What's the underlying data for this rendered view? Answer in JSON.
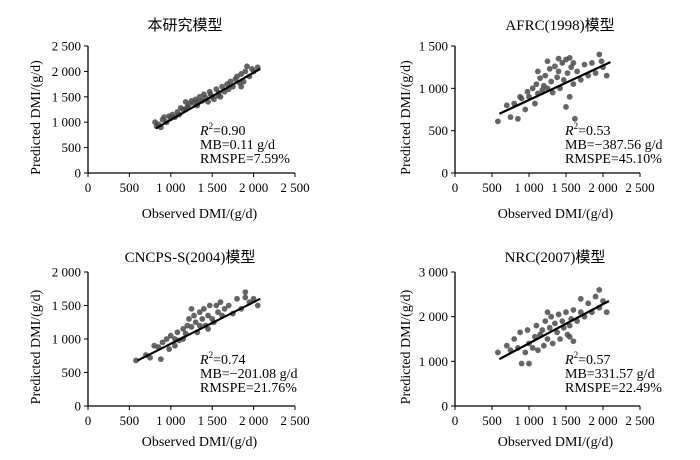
{
  "chart_data": [
    {
      "type": "scatter",
      "title": "本研究模型",
      "xlabel": "Observed DMI/(g/d)",
      "ylabel": "Predicted DMI/(g/d)",
      "xlim": [
        0,
        2500
      ],
      "ylim": [
        0,
        2500
      ],
      "xticks": [
        "0",
        "500",
        "1 000",
        "1 500",
        "2 000",
        "2 500"
      ],
      "yticks": [
        "0",
        "500",
        "1 000",
        "1 500",
        "2 000",
        "2 500"
      ],
      "stats": {
        "r2_label": "R",
        "r2_value": "=0.90",
        "mb": "MB=0.11 g/d",
        "rmspe": "RMSPE=7.59%"
      },
      "fit_line": [
        [
          820,
          880
        ],
        [
          2080,
          2050
        ]
      ],
      "points": [
        [
          810,
          1000
        ],
        [
          830,
          920
        ],
        [
          850,
          960
        ],
        [
          880,
          900
        ],
        [
          900,
          1050
        ],
        [
          920,
          1100
        ],
        [
          950,
          1000
        ],
        [
          980,
          1120
        ],
        [
          1000,
          1080
        ],
        [
          1020,
          1150
        ],
        [
          1050,
          1100
        ],
        [
          1080,
          1200
        ],
        [
          1100,
          1150
        ],
        [
          1120,
          1280
        ],
        [
          1150,
          1250
        ],
        [
          1180,
          1400
        ],
        [
          1200,
          1300
        ],
        [
          1220,
          1350
        ],
        [
          1250,
          1420
        ],
        [
          1280,
          1380
        ],
        [
          1300,
          1450
        ],
        [
          1320,
          1330
        ],
        [
          1350,
          1500
        ],
        [
          1380,
          1420
        ],
        [
          1400,
          1550
        ],
        [
          1420,
          1480
        ],
        [
          1450,
          1400
        ],
        [
          1470,
          1600
        ],
        [
          1500,
          1500
        ],
        [
          1520,
          1450
        ],
        [
          1550,
          1650
        ],
        [
          1570,
          1520
        ],
        [
          1600,
          1500
        ],
        [
          1620,
          1700
        ],
        [
          1650,
          1600
        ],
        [
          1680,
          1750
        ],
        [
          1700,
          1650
        ],
        [
          1720,
          1800
        ],
        [
          1750,
          1700
        ],
        [
          1780,
          1850
        ],
        [
          1800,
          1900
        ],
        [
          1830,
          1780
        ],
        [
          1850,
          1950
        ],
        [
          1880,
          1800
        ],
        [
          1900,
          2000
        ],
        [
          1920,
          2100
        ],
        [
          1950,
          1900
        ],
        [
          1980,
          2050
        ],
        [
          2000,
          2000
        ],
        [
          2050,
          2080
        ],
        [
          1480,
          1550
        ],
        [
          1580,
          1580
        ],
        [
          1180,
          1250
        ],
        [
          1330,
          1400
        ],
        [
          1850,
          1700
        ]
      ]
    },
    {
      "type": "scatter",
      "title": "AFRC(1998)模型",
      "xlabel": "Observed DMI/(g/d)",
      "ylabel": "Predicted DMI/(g/d)",
      "xlim": [
        0,
        2500
      ],
      "ylim": [
        0,
        1500
      ],
      "xticks": [
        "0",
        "500",
        "1 000",
        "1 500",
        "2 000",
        "2 500"
      ],
      "yticks": [
        "0",
        "500",
        "1 000",
        "1 500"
      ],
      "stats": {
        "r2_label": "R",
        "r2_value": "=0.53",
        "mb": "MB=−387.56 g/d",
        "rmspe": "RMSPE=45.10%"
      },
      "fit_line": [
        [
          600,
          700
        ],
        [
          2100,
          1310
        ]
      ],
      "points": [
        [
          580,
          610
        ],
        [
          700,
          800
        ],
        [
          750,
          660
        ],
        [
          800,
          820
        ],
        [
          850,
          640
        ],
        [
          880,
          900
        ],
        [
          900,
          880
        ],
        [
          950,
          750
        ],
        [
          980,
          960
        ],
        [
          1000,
          900
        ],
        [
          1050,
          1000
        ],
        [
          1080,
          820
        ],
        [
          1100,
          1050
        ],
        [
          1120,
          940
        ],
        [
          1150,
          1120
        ],
        [
          1180,
          980
        ],
        [
          1200,
          1030
        ],
        [
          1220,
          1150
        ],
        [
          1250,
          1000
        ],
        [
          1280,
          1230
        ],
        [
          1300,
          1080
        ],
        [
          1320,
          950
        ],
        [
          1350,
          1260
        ],
        [
          1380,
          1130
        ],
        [
          1400,
          1200
        ],
        [
          1420,
          1000
        ],
        [
          1450,
          1300
        ],
        [
          1470,
          1100
        ],
        [
          1500,
          1340
        ],
        [
          1520,
          1180
        ],
        [
          1550,
          900
        ],
        [
          1570,
          1250
        ],
        [
          1600,
          1050
        ],
        [
          1620,
          640
        ],
        [
          1650,
          1200
        ],
        [
          1700,
          1100
        ],
        [
          1750,
          1280
        ],
        [
          1800,
          1150
        ],
        [
          1850,
          1300
        ],
        [
          1900,
          1180
        ],
        [
          1950,
          1400
        ],
        [
          2000,
          1250
        ],
        [
          2050,
          1150
        ],
        [
          1550,
          1360
        ],
        [
          1400,
          1350
        ],
        [
          1250,
          1320
        ],
        [
          1500,
          780
        ],
        [
          1120,
          1200
        ],
        [
          1600,
          1300
        ],
        [
          1980,
          1320
        ]
      ]
    },
    {
      "type": "scatter",
      "title": "CNCPS-S(2004)模型",
      "xlabel": "Observed DMI/(g/d)",
      "ylabel": "Predicted DMI/(g/d)",
      "xlim": [
        0,
        2500
      ],
      "ylim": [
        0,
        2000
      ],
      "xticks": [
        "0",
        "500",
        "1 000",
        "1 500",
        "2 000",
        "2 500"
      ],
      "yticks": [
        "0",
        "500",
        "1 000",
        "1 500",
        "2 000"
      ],
      "stats": {
        "r2_label": "R",
        "r2_value": "=0.74",
        "mb": "MB=−201.08 g/d",
        "rmspe": "RMSPE=21.76%"
      },
      "fit_line": [
        [
          600,
          680
        ],
        [
          2080,
          1600
        ]
      ],
      "points": [
        [
          580,
          680
        ],
        [
          700,
          760
        ],
        [
          750,
          720
        ],
        [
          800,
          900
        ],
        [
          850,
          880
        ],
        [
          880,
          700
        ],
        [
          900,
          950
        ],
        [
          950,
          1000
        ],
        [
          980,
          850
        ],
        [
          1000,
          1050
        ],
        [
          1050,
          1000
        ],
        [
          1080,
          1100
        ],
        [
          1100,
          980
        ],
        [
          1150,
          1150
        ],
        [
          1180,
          1080
        ],
        [
          1200,
          1200
        ],
        [
          1220,
          1300
        ],
        [
          1250,
          1180
        ],
        [
          1280,
          1350
        ],
        [
          1300,
          1250
        ],
        [
          1320,
          1100
        ],
        [
          1350,
          1400
        ],
        [
          1380,
          1300
        ],
        [
          1400,
          1450
        ],
        [
          1420,
          1200
        ],
        [
          1450,
          1350
        ],
        [
          1470,
          1500
        ],
        [
          1500,
          1300
        ],
        [
          1520,
          1250
        ],
        [
          1550,
          1500
        ],
        [
          1570,
          1400
        ],
        [
          1600,
          1550
        ],
        [
          1620,
          1350
        ],
        [
          1650,
          1450
        ],
        [
          1700,
          1500
        ],
        [
          1750,
          1380
        ],
        [
          1800,
          1600
        ],
        [
          1850,
          1450
        ],
        [
          1900,
          1700
        ],
        [
          1950,
          1550
        ],
        [
          2000,
          1600
        ],
        [
          2050,
          1500
        ],
        [
          1450,
          1150
        ],
        [
          1350,
          1200
        ],
        [
          1250,
          1450
        ],
        [
          1150,
          1000
        ],
        [
          1050,
          900
        ],
        [
          1900,
          1620
        ]
      ]
    },
    {
      "type": "scatter",
      "title": "NRC(2007)模型",
      "xlabel": "Observed DMI/(g/d)",
      "ylabel": "Predicted DMI/(g/d)",
      "xlim": [
        0,
        2500
      ],
      "ylim": [
        0,
        3000
      ],
      "xticks": [
        "0",
        "500",
        "1 000",
        "1 500",
        "2 000",
        "2 500"
      ],
      "yticks": [
        "0",
        "1 000",
        "2 000",
        "3 000"
      ],
      "stats": {
        "r2_label": "R",
        "r2_value": "=0.57",
        "mb": "MB=331.57 g/d",
        "rmspe": "RMSPE=22.49%"
      },
      "fit_line": [
        [
          600,
          1050
        ],
        [
          2080,
          2350
        ]
      ],
      "points": [
        [
          580,
          1200
        ],
        [
          700,
          1350
        ],
        [
          750,
          1250
        ],
        [
          800,
          1500
        ],
        [
          850,
          1300
        ],
        [
          880,
          1650
        ],
        [
          900,
          950
        ],
        [
          950,
          1200
        ],
        [
          980,
          1700
        ],
        [
          1000,
          1400
        ],
        [
          1050,
          1300
        ],
        [
          1080,
          1550
        ],
        [
          1100,
          1800
        ],
        [
          1120,
          1250
        ],
        [
          1150,
          1600
        ],
        [
          1180,
          1700
        ],
        [
          1200,
          1350
        ],
        [
          1220,
          1900
        ],
        [
          1250,
          1500
        ],
        [
          1280,
          1750
        ],
        [
          1300,
          2000
        ],
        [
          1320,
          1400
        ],
        [
          1350,
          1850
        ],
        [
          1380,
          1650
        ],
        [
          1400,
          2050
        ],
        [
          1420,
          1500
        ],
        [
          1450,
          1900
        ],
        [
          1470,
          1750
        ],
        [
          1500,
          2100
        ],
        [
          1520,
          1600
        ],
        [
          1550,
          1800
        ],
        [
          1570,
          1950
        ],
        [
          1600,
          2150
        ],
        [
          1650,
          1900
        ],
        [
          1700,
          2100
        ],
        [
          1750,
          2000
        ],
        [
          1800,
          2300
        ],
        [
          1850,
          2100
        ],
        [
          1900,
          2450
        ],
        [
          1950,
          2200
        ],
        [
          2000,
          2350
        ],
        [
          2050,
          2100
        ],
        [
          1950,
          2600
        ],
        [
          1550,
          1550
        ],
        [
          1250,
          2100
        ],
        [
          1000,
          950
        ],
        [
          1600,
          1450
        ],
        [
          1700,
          2400
        ]
      ]
    }
  ]
}
